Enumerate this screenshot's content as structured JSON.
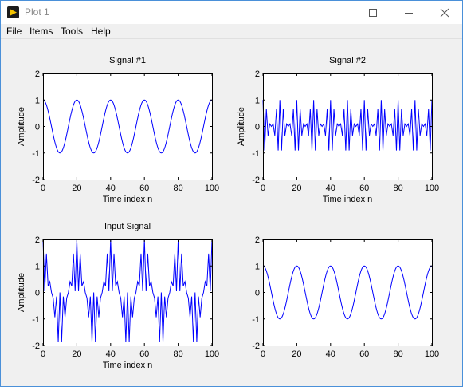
{
  "window": {
    "title": "Plot 1"
  },
  "menu": [
    "File",
    "Items",
    "Tools",
    "Help"
  ],
  "chart_data": [
    {
      "type": "line",
      "title": "Signal #1",
      "xlabel": "Time index n",
      "ylabel": "Amplitude",
      "xlim": [
        0,
        100
      ],
      "ylim": [
        -2,
        2
      ],
      "xticks": [
        0,
        20,
        40,
        60,
        80,
        100
      ],
      "yticks": [
        -2,
        -1,
        0,
        1,
        2
      ],
      "series": [
        {
          "formula": "cos(2*pi*n/20)",
          "n_range": [
            0,
            100
          ],
          "color": "#0000ff"
        }
      ]
    },
    {
      "type": "line",
      "title": "Signal #2",
      "xlabel": "Time index n",
      "ylabel": "Amplitude",
      "xlim": [
        0,
        100
      ],
      "ylim": [
        -2,
        2
      ],
      "xticks": [
        0,
        20,
        40,
        60,
        80,
        100
      ],
      "yticks": [
        -2,
        -1,
        0,
        1,
        2
      ],
      "series": [
        {
          "formula": "cos(2*pi*n/20)*cos(2*pi*n*0.45)",
          "n_range": [
            0,
            100
          ],
          "color": "#0000ff"
        }
      ]
    },
    {
      "type": "line",
      "title": "Input Signal",
      "xlabel": "Time index n",
      "ylabel": "Amplitude",
      "xlim": [
        0,
        100
      ],
      "ylim": [
        -2,
        2
      ],
      "xticks": [
        0,
        20,
        40,
        60,
        80,
        100
      ],
      "yticks": [
        -2,
        -1,
        0,
        1,
        2
      ],
      "series": [
        {
          "formula": "cos(2*pi*n/20) + cos(2*pi*n/20)*cos(2*pi*n*0.45)",
          "n_range": [
            0,
            100
          ],
          "color": "#0000ff"
        }
      ]
    },
    {
      "type": "line",
      "title": "",
      "xlabel": "",
      "ylabel": "",
      "xlim": [
        0,
        100
      ],
      "ylim": [
        -2,
        2
      ],
      "xticks": [
        0,
        20,
        40,
        60,
        80,
        100
      ],
      "yticks": [
        -2,
        -1,
        0,
        1,
        2
      ],
      "series": [
        {
          "formula": "cos(2*pi*n/20)",
          "n_range": [
            0,
            100
          ],
          "color": "#0000ff"
        }
      ]
    }
  ]
}
